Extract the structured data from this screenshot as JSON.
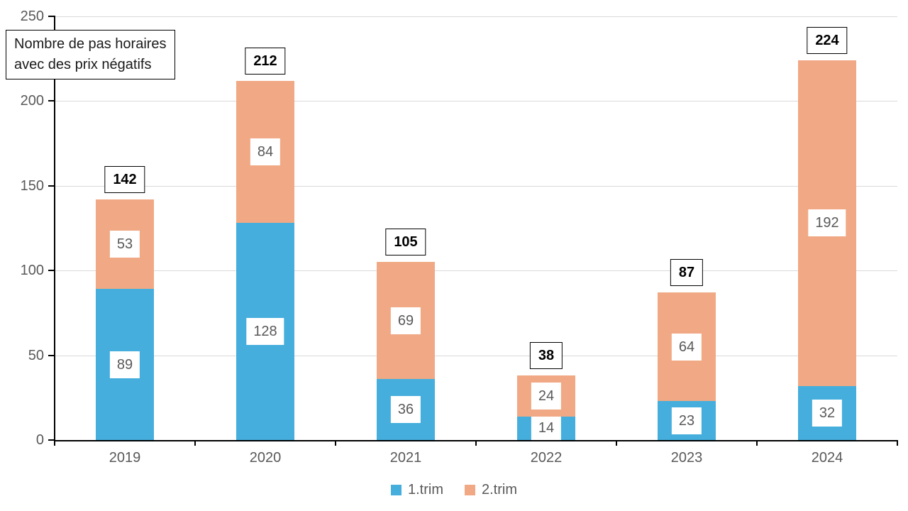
{
  "chart_data": {
    "type": "bar",
    "stacked": true,
    "title": "Nombre de pas horaires avec des prix négatifs",
    "title_lines": [
      "Nombre de pas horaires",
      "avec des prix négatifs"
    ],
    "categories": [
      "2019",
      "2020",
      "2021",
      "2022",
      "2023",
      "2024"
    ],
    "series": [
      {
        "name": "1.trim",
        "color": "#45AEDD",
        "values": [
          89,
          128,
          36,
          14,
          23,
          32
        ]
      },
      {
        "name": "2.trim",
        "color": "#F0A984",
        "values": [
          53,
          84,
          69,
          24,
          64,
          192
        ]
      }
    ],
    "totals": [
      142,
      212,
      105,
      38,
      87,
      224
    ],
    "ylim": [
      0,
      250
    ],
    "yticks": [
      0,
      50,
      100,
      150,
      200,
      250
    ],
    "grid": true,
    "legend_position": "bottom",
    "colors": {
      "axis": "#000000",
      "gridline": "#D9D9D9",
      "tick_label_text": "#595959",
      "segment_label_text": "#595959",
      "total_label_text": "#000000",
      "background": "#FFFFFF"
    }
  }
}
